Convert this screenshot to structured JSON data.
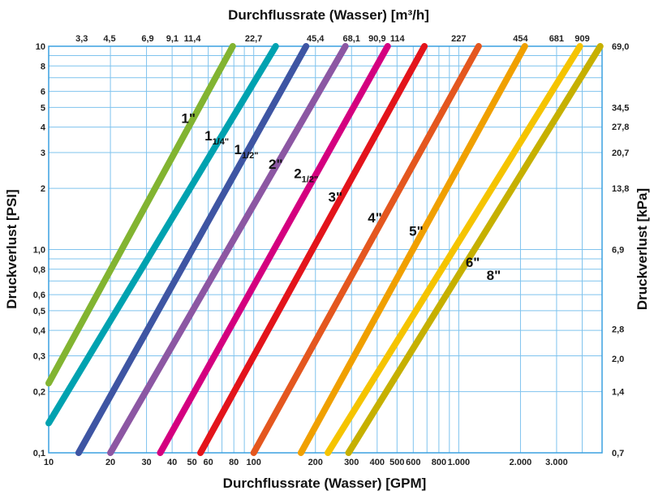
{
  "chart_data": {
    "type": "line",
    "title_top": "Durchflussrate (Wasser) [m³/h]",
    "xlabel": "Durchflussrate (Wasser) [GPM]",
    "ylabel_left": "Druckverlust [PSI]",
    "ylabel_right": "Druckverlust [kPa]",
    "x_scale": "log",
    "y_scale": "log",
    "xlim": [
      10,
      5000
    ],
    "ylim": [
      0.1,
      10
    ],
    "grid": true,
    "legend": "none",
    "x_ticks_bottom": [
      {
        "v": 10,
        "label": "10"
      },
      {
        "v": 20,
        "label": "20"
      },
      {
        "v": 30,
        "label": "30"
      },
      {
        "v": 40,
        "label": "40"
      },
      {
        "v": 50,
        "label": "50"
      },
      {
        "v": 60,
        "label": "60"
      },
      {
        "v": 80,
        "label": "80"
      },
      {
        "v": 100,
        "label": "100"
      },
      {
        "v": 200,
        "label": "200"
      },
      {
        "v": 300,
        "label": "300"
      },
      {
        "v": 400,
        "label": "400"
      },
      {
        "v": 500,
        "label": "500"
      },
      {
        "v": 600,
        "label": "600"
      },
      {
        "v": 800,
        "label": "800"
      },
      {
        "v": 1000,
        "label": "1.000"
      },
      {
        "v": 2000,
        "label": "2.000"
      },
      {
        "v": 3000,
        "label": "3.000"
      }
    ],
    "x_ticks_top": [
      {
        "v": 14.5,
        "label": "3,3"
      },
      {
        "v": 19.8,
        "label": "4,5"
      },
      {
        "v": 30.4,
        "label": "6,9"
      },
      {
        "v": 40.1,
        "label": "9,1"
      },
      {
        "v": 50.2,
        "label": "11,4"
      },
      {
        "v": 99.9,
        "label": "22,7"
      },
      {
        "v": 199.9,
        "label": "45,4"
      },
      {
        "v": 299.8,
        "label": "68,1"
      },
      {
        "v": 400.2,
        "label": "90,9"
      },
      {
        "v": 501.9,
        "label": "114"
      },
      {
        "v": 999.4,
        "label": "227"
      },
      {
        "v": 1998.9,
        "label": "454"
      },
      {
        "v": 2998.3,
        "label": "681"
      },
      {
        "v": 4002.3,
        "label": "909"
      }
    ],
    "y_ticks_left": [
      {
        "v": 0.1,
        "label": "0,1"
      },
      {
        "v": 0.2,
        "label": "0,2"
      },
      {
        "v": 0.3,
        "label": "0,3"
      },
      {
        "v": 0.4,
        "label": "0,4"
      },
      {
        "v": 0.5,
        "label": "0,5"
      },
      {
        "v": 0.6,
        "label": "0,6"
      },
      {
        "v": 0.8,
        "label": "0,8"
      },
      {
        "v": 1,
        "label": "1,0"
      },
      {
        "v": 2,
        "label": "2"
      },
      {
        "v": 3,
        "label": "3"
      },
      {
        "v": 4,
        "label": "4"
      },
      {
        "v": 5,
        "label": "5"
      },
      {
        "v": 6,
        "label": "6"
      },
      {
        "v": 8,
        "label": "8"
      },
      {
        "v": 10,
        "label": "10"
      }
    ],
    "y_ticks_right": [
      {
        "v": 0.1,
        "label": "0,7"
      },
      {
        "v": 0.2,
        "label": "1,4"
      },
      {
        "v": 0.29,
        "label": "2,0"
      },
      {
        "v": 0.406,
        "label": "2,8"
      },
      {
        "v": 1,
        "label": "6,9"
      },
      {
        "v": 2,
        "label": "13,8"
      },
      {
        "v": 3,
        "label": "20,7"
      },
      {
        "v": 4.03,
        "label": "27,8"
      },
      {
        "v": 5,
        "label": "34,5"
      },
      {
        "v": 10,
        "label": "69,0"
      }
    ],
    "series": [
      {
        "name": "1\"",
        "color": "#82b431",
        "x": [
          10,
          79
        ],
        "y": [
          0.22,
          10
        ],
        "label_main": "1\"",
        "label_sub": "",
        "label_at": [
          48,
          4.2
        ]
      },
      {
        "name": "1 1/4\"",
        "color": "#00a2b0",
        "x": [
          10,
          128
        ],
        "y": [
          0.14,
          10
        ],
        "label_main": "1",
        "label_sub": "1/4\"",
        "label_at": [
          66,
          3.45
        ]
      },
      {
        "name": "1 1/2\"",
        "color": "#3e55a3",
        "x": [
          14,
          180
        ],
        "y": [
          0.1,
          10
        ],
        "label_main": "1",
        "label_sub": "1/2\"",
        "label_at": [
          92,
          2.95
        ]
      },
      {
        "name": "2\"",
        "color": "#8c57a3",
        "x": [
          20,
          280
        ],
        "y": [
          0.1,
          10
        ],
        "label_main": "2\"",
        "label_sub": "",
        "label_at": [
          128,
          2.5
        ]
      },
      {
        "name": "2 1/2\"",
        "color": "#d4007f",
        "x": [
          35,
          450
        ],
        "y": [
          0.1,
          10
        ],
        "label_main": "2",
        "label_sub": "1/2\"",
        "label_at": [
          180,
          2.25
        ]
      },
      {
        "name": "3\"",
        "color": "#e3141b",
        "x": [
          55,
          680
        ],
        "y": [
          0.1,
          10
        ],
        "label_main": "3\"",
        "label_sub": "",
        "label_at": [
          250,
          1.72
        ]
      },
      {
        "name": "4\"",
        "color": "#e4571f",
        "x": [
          100,
          1250
        ],
        "y": [
          0.1,
          10
        ],
        "label_main": "4\"",
        "label_sub": "",
        "label_at": [
          390,
          1.36
        ]
      },
      {
        "name": "5\"",
        "color": "#f0a000",
        "x": [
          170,
          2100
        ],
        "y": [
          0.1,
          10
        ],
        "label_main": "5\"",
        "label_sub": "",
        "label_at": [
          620,
          1.17
        ]
      },
      {
        "name": "6\"",
        "color": "#f5c400",
        "x": [
          230,
          3900
        ],
        "y": [
          0.1,
          10
        ],
        "label_main": "6\"",
        "label_sub": "",
        "label_at": [
          1170,
          0.82
        ]
      },
      {
        "name": "8\"",
        "color": "#c6b000",
        "x": [
          290,
          4900
        ],
        "y": [
          0.1,
          10
        ],
        "label_main": "8\"",
        "label_sub": "",
        "label_at": [
          1480,
          0.71
        ]
      }
    ]
  }
}
